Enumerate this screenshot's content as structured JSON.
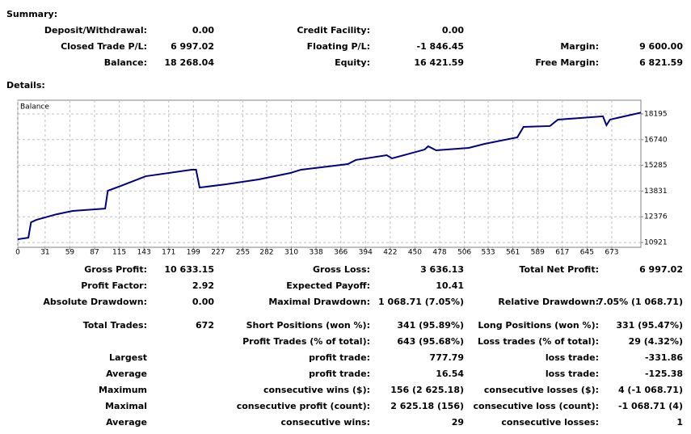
{
  "summary": {
    "title": "Summary:",
    "rows": [
      [
        "Deposit/Withdrawal:",
        "0.00",
        "Credit Facility:",
        "0.00",
        null,
        null
      ],
      [
        "Closed Trade P/L:",
        "6 997.02",
        "Floating P/L:",
        "-1 846.45",
        "Margin:",
        "9 600.00"
      ],
      [
        "Balance:",
        "18 268.04",
        "Equity:",
        "16 421.59",
        "Free Margin:",
        "6 821.59"
      ]
    ]
  },
  "details": {
    "title": "Details:",
    "rows": [
      [
        "Gross Profit:",
        "10 633.15",
        "Gross Loss:",
        "3 636.13",
        "Total Net Profit:",
        "6 997.02"
      ],
      [
        "Profit Factor:",
        "2.92",
        "Expected Payoff:",
        "10.41",
        null,
        null
      ],
      [
        "Absolute Drawdown:",
        "0.00",
        "Maximal Drawdown:",
        "1 068.71 (7.05%)",
        "Relative Drawdown:",
        "7.05% (1 068.71)"
      ],
      [
        "Total Trades:",
        "672",
        "Short Positions (won %):",
        "341 (95.89%)",
        "Long Positions (won %):",
        "331 (95.47%)"
      ],
      [
        null,
        null,
        "Profit Trades (% of total):",
        "643 (95.68%)",
        "Loss trades (% of total):",
        "29 (4.32%)"
      ],
      [
        "Largest",
        null,
        "profit trade:",
        "777.79",
        "loss trade:",
        "-331.86"
      ],
      [
        "Average",
        null,
        "profit trade:",
        "16.54",
        "loss trade:",
        "-125.38"
      ],
      [
        "Maximum",
        null,
        "consecutive wins ($):",
        "156 (2 625.18)",
        "consecutive losses ($):",
        "4 (-1 068.71)"
      ],
      [
        "Maximal",
        null,
        "consecutive profit (count):",
        "2 625.18 (156)",
        "consecutive loss (count):",
        "-1 068.71 (4)"
      ],
      [
        "Average",
        null,
        "consecutive wins:",
        "29",
        "consecutive losses:",
        "1"
      ]
    ]
  },
  "chart_data": {
    "type": "line",
    "series": [
      {
        "name": "Balance",
        "color": "#000080",
        "x": [
          0,
          12,
          15,
          21,
          44,
          62,
          99,
          102,
          117,
          145,
          197,
          202,
          206,
          236,
          273,
          309,
          321,
          374,
          383,
          418,
          424,
          461,
          465,
          474,
          511,
          529,
          566,
          573,
          603,
          612,
          639,
          663,
          667,
          671,
          706
        ],
        "values": [
          11104,
          11195,
          12065,
          12200,
          12520,
          12705,
          12840,
          13850,
          14125,
          14670,
          15040,
          15040,
          14030,
          14215,
          14490,
          14855,
          15040,
          15360,
          15590,
          15860,
          15680,
          16180,
          16365,
          16135,
          16275,
          16500,
          16870,
          17460,
          17510,
          17875,
          17970,
          18060,
          17555,
          17875,
          18268
        ]
      }
    ],
    "xlim": [
      0,
      706
    ],
    "ylim": [
      10650,
      18970
    ],
    "xticks": [
      0,
      31,
      59,
      87,
      115,
      143,
      171,
      199,
      227,
      255,
      282,
      310,
      338,
      366,
      394,
      422,
      450,
      478,
      506,
      533,
      561,
      589,
      617,
      645,
      673
    ],
    "yticks": [
      10921,
      12376,
      13831,
      15285,
      16740,
      18195
    ],
    "grid": true
  }
}
